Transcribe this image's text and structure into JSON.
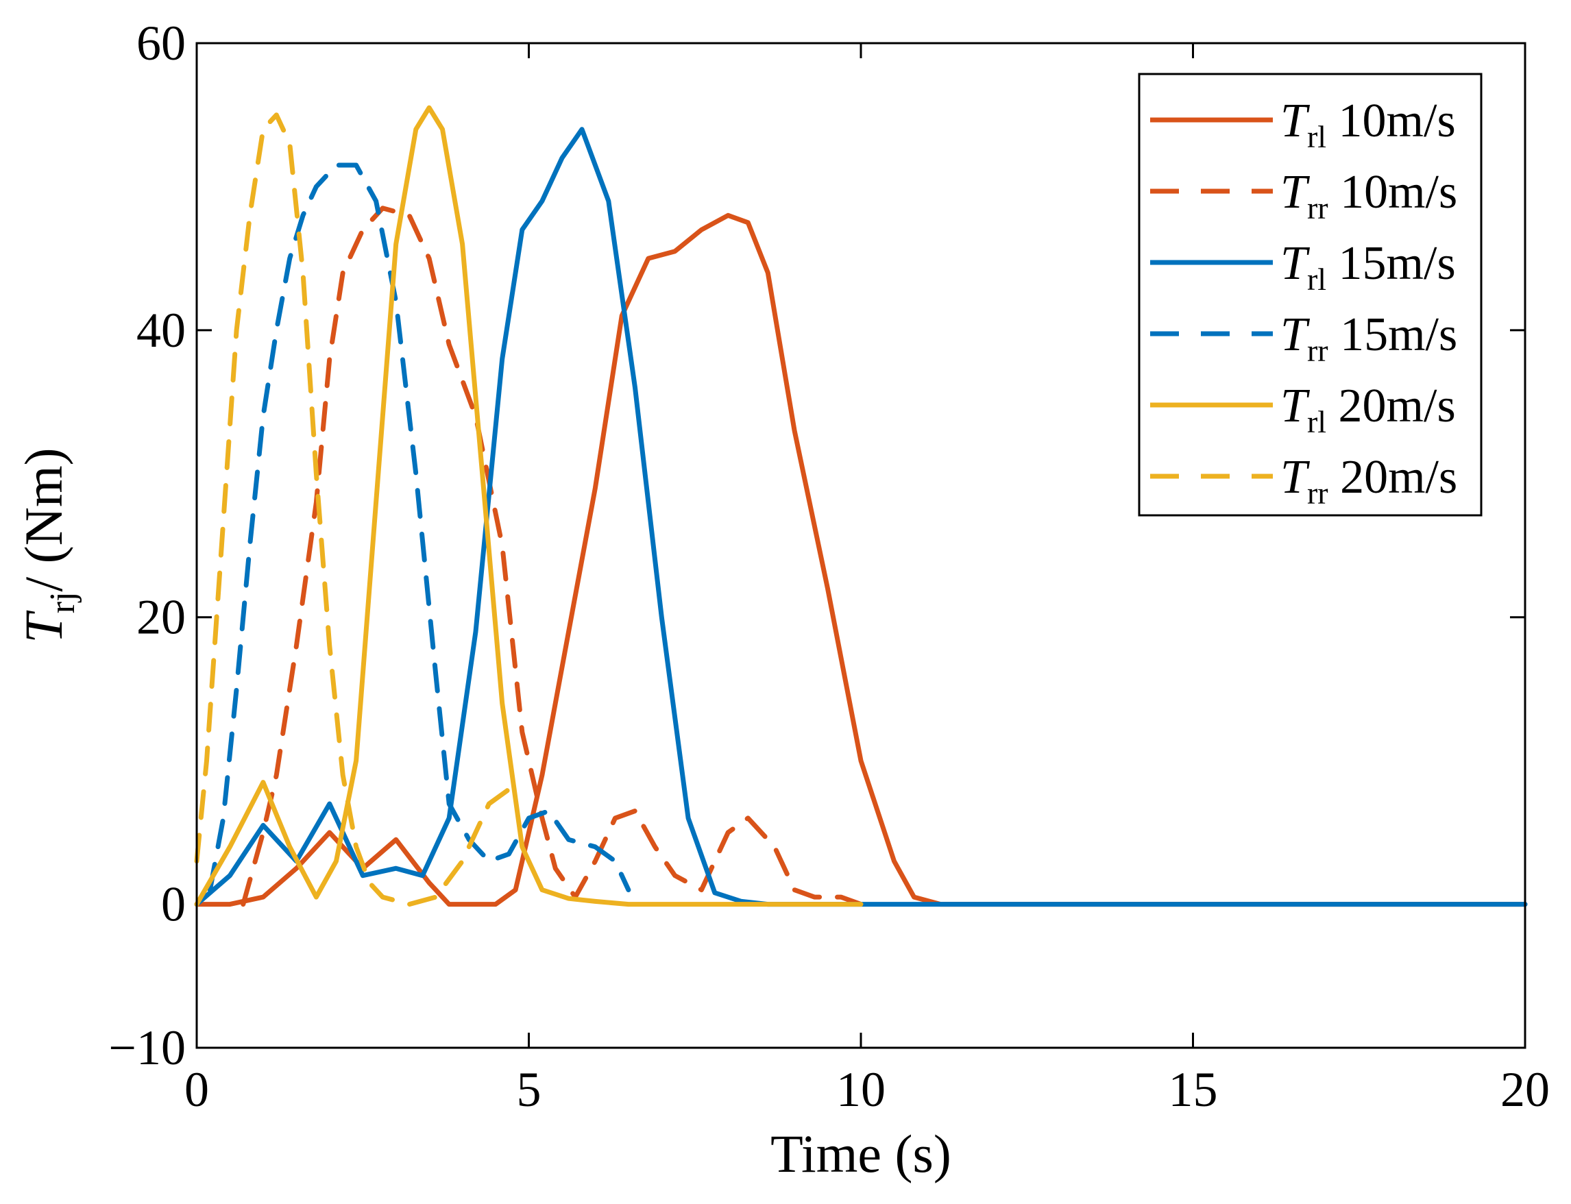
{
  "chart_data": {
    "type": "line",
    "title": "",
    "xlabel": "Time (s)",
    "ylabel": {
      "symbol": "T",
      "subscript": "rj",
      "rest": "/ (Nm)"
    },
    "xlim": [
      0,
      20
    ],
    "ylim": [
      -10,
      60
    ],
    "xticks": [
      0,
      5,
      10,
      15,
      20
    ],
    "xtick_labels": [
      "0",
      "5",
      "10",
      "15",
      "20"
    ],
    "yticks": [
      -10,
      0,
      20,
      40,
      60
    ],
    "ytick_labels": [
      "−10",
      "0",
      "20",
      "40",
      "60"
    ],
    "grid": false,
    "legend_position": "top-right",
    "series": [
      {
        "legend": {
          "symbol": "T",
          "subscript": "rl",
          "text": "10m/s"
        },
        "color": "#D95319",
        "style": "solid",
        "x": [
          0,
          0.5,
          1,
          1.5,
          2,
          2.5,
          3,
          3.5,
          3.8,
          4.5,
          4.8,
          5.2,
          5.6,
          6.0,
          6.4,
          6.8,
          7.2,
          7.6,
          8.0,
          8.3,
          8.6,
          9.0,
          9.5,
          10.0,
          10.5,
          10.8,
          11.2,
          11.5,
          20
        ],
        "y": [
          0,
          0,
          0.5,
          2.5,
          5,
          2.5,
          4.5,
          1.5,
          0,
          0,
          1,
          9,
          19,
          29,
          41,
          45,
          45.5,
          47,
          48,
          47.5,
          44,
          33,
          22,
          10,
          3,
          0.5,
          0,
          0,
          0
        ]
      },
      {
        "legend": {
          "symbol": "T",
          "subscript": "rr",
          "text": "10m/s"
        },
        "color": "#D95319",
        "style": "dashed",
        "x": [
          0.7,
          1,
          1.2,
          1.5,
          1.8,
          2.0,
          2.2,
          2.5,
          2.8,
          3.2,
          3.5,
          3.8,
          4.2,
          4.6,
          4.9,
          5.2,
          5.4,
          5.7,
          6.0,
          6.3,
          6.6,
          6.9,
          7.2,
          7.6,
          8.0,
          8.3,
          8.7,
          9.0,
          9.3,
          9.7,
          10.0
        ],
        "y": [
          0,
          5,
          9,
          18,
          28,
          38,
          44,
          47,
          48.5,
          48,
          45,
          39,
          34,
          25,
          12,
          6,
          2.5,
          0.5,
          3,
          6,
          6.5,
          4,
          2,
          1,
          5,
          6,
          4,
          1,
          0.5,
          0.5,
          0
        ]
      },
      {
        "legend": {
          "symbol": "T",
          "subscript": "rl",
          "text": "15m/s"
        },
        "color": "#0072BD",
        "style": "solid",
        "x": [
          0,
          0.5,
          1,
          1.5,
          2,
          2.5,
          3,
          3.4,
          3.8,
          4.2,
          4.6,
          4.9,
          5.2,
          5.5,
          5.8,
          6.2,
          6.6,
          7.0,
          7.4,
          7.8,
          8.2,
          8.6,
          20
        ],
        "y": [
          0,
          2,
          5.5,
          3,
          7,
          2,
          2.5,
          2,
          6,
          19,
          38,
          47,
          49,
          52,
          54,
          49,
          36,
          20,
          6,
          0.8,
          0.2,
          0,
          0
        ]
      },
      {
        "legend": {
          "symbol": "T",
          "subscript": "rr",
          "text": "15m/s"
        },
        "color": "#0072BD",
        "style": "dashed",
        "x": [
          0.2,
          0.4,
          0.6,
          0.8,
          1.0,
          1.2,
          1.4,
          1.6,
          1.8,
          2.1,
          2.4,
          2.7,
          3.0,
          3.3,
          3.6,
          3.8,
          4.1,
          4.4,
          4.7,
          5.0,
          5.3,
          5.6,
          6.0,
          6.3,
          6.5
        ],
        "y": [
          1,
          6,
          15,
          25,
          34,
          40,
          45,
          48,
          50,
          51.5,
          51.5,
          49,
          42,
          30,
          16,
          7,
          4.5,
          3,
          3.5,
          6,
          6.5,
          4.5,
          4,
          3,
          1
        ]
      },
      {
        "legend": {
          "symbol": "T",
          "subscript": "rl",
          "text": "20m/s"
        },
        "color": "#EDB120",
        "style": "solid",
        "x": [
          0,
          0.5,
          1,
          1.4,
          1.8,
          2.1,
          2.4,
          2.7,
          3.0,
          3.3,
          3.5,
          3.7,
          4.0,
          4.3,
          4.6,
          4.9,
          5.2,
          5.6,
          6.0,
          6.5,
          10
        ],
        "y": [
          0,
          4,
          8.5,
          4,
          0.5,
          3,
          10,
          28,
          46,
          54,
          55.5,
          54,
          46,
          30,
          14,
          4,
          1,
          0.4,
          0.2,
          0,
          0
        ]
      },
      {
        "legend": {
          "symbol": "T",
          "subscript": "rr",
          "text": "20m/s"
        },
        "color": "#EDB120",
        "style": "dashed",
        "x": [
          0,
          0.15,
          0.3,
          0.45,
          0.6,
          0.8,
          1.0,
          1.2,
          1.4,
          1.6,
          1.8,
          2.0,
          2.2,
          2.4,
          2.6,
          2.8,
          3.2,
          3.6,
          4.0,
          4.4,
          4.7
        ],
        "y": [
          3,
          10,
          20,
          30,
          40,
          48,
          54,
          55,
          53,
          44,
          30,
          18,
          9,
          4,
          1.5,
          0.5,
          0,
          0.5,
          3,
          7,
          8
        ]
      }
    ]
  }
}
